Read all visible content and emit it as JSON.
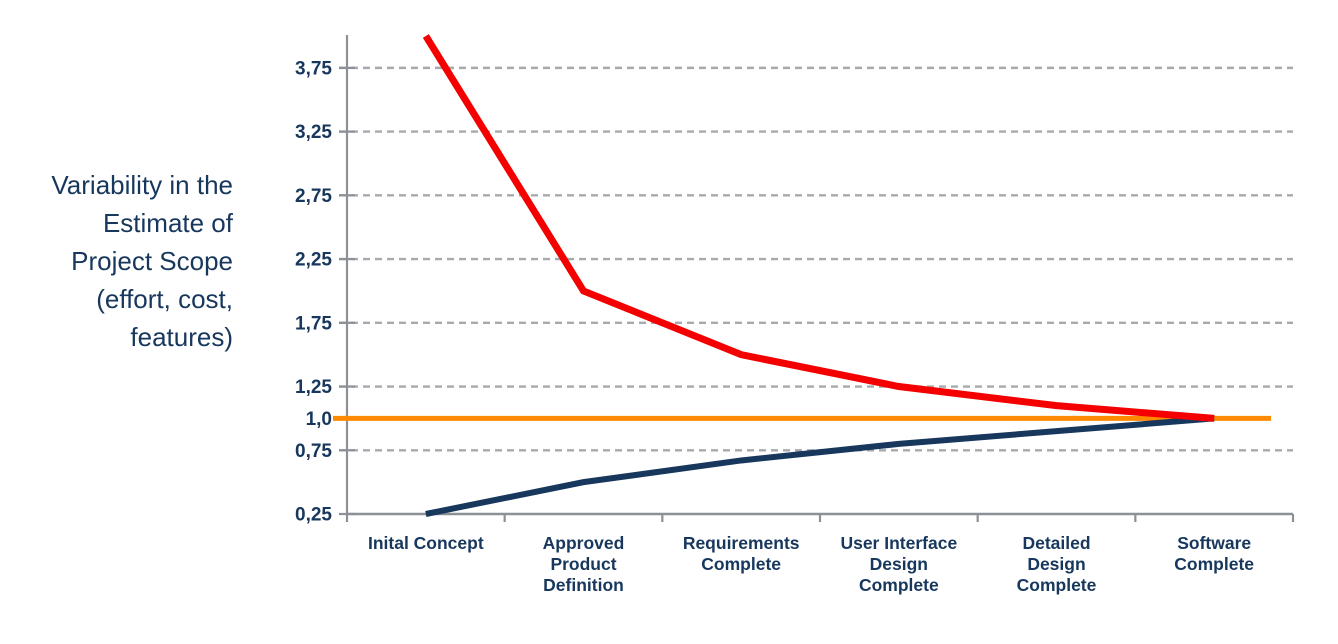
{
  "side_label": {
    "lines": [
      "Variability in the",
      "Estimate of",
      "Project Scope",
      "(effort, cost,",
      "features)"
    ]
  },
  "chart_data": {
    "type": "line",
    "title": "",
    "xlabel": "",
    "ylabel": "Variability in the Estimate of Project Scope (effort, cost, features)",
    "ylim": [
      0.25,
      4.0
    ],
    "grid": "horizontal-dashed",
    "legend_position": "none",
    "categories": [
      "Inital Concept",
      "Approved\nProduct\nDefinition",
      "Requirements\nComplete",
      "User Interface\nDesign\nComplete",
      "Detailed\nDesign\nComplete",
      "Software\nComplete"
    ],
    "y_ticks": [
      {
        "label": "3,75",
        "value": 3.75,
        "gridline": true
      },
      {
        "label": "3,25",
        "value": 3.25,
        "gridline": true
      },
      {
        "label": "2,75",
        "value": 2.75,
        "gridline": true
      },
      {
        "label": "2,25",
        "value": 2.25,
        "gridline": true
      },
      {
        "label": "1,75",
        "value": 1.75,
        "gridline": true
      },
      {
        "label": "1,25",
        "value": 1.25,
        "gridline": true
      },
      {
        "label": "1,0",
        "value": 1.0,
        "gridline": false
      },
      {
        "label": "0,75",
        "value": 0.75,
        "gridline": true
      },
      {
        "label": "0,25",
        "value": 0.25,
        "gridline": false
      }
    ],
    "series": [
      {
        "name": "upper-estimate-bound",
        "color": "#F40000",
        "stroke_width": 7,
        "values": [
          4.0,
          2.0,
          1.5,
          1.25,
          1.1,
          1.0
        ]
      },
      {
        "name": "lower-estimate-bound",
        "color": "#17375D",
        "stroke_width": 6,
        "values": [
          0.25,
          0.5,
          0.67,
          0.8,
          0.9,
          1.0
        ]
      }
    ],
    "baseline": {
      "name": "convergence-baseline",
      "color": "#FF8A00",
      "stroke_width": 5,
      "value": 1.0
    },
    "colors": {
      "text_navy": "#17375D",
      "gridline_gray": "#A6A9AE",
      "axis_gray": "#8C9097"
    }
  }
}
